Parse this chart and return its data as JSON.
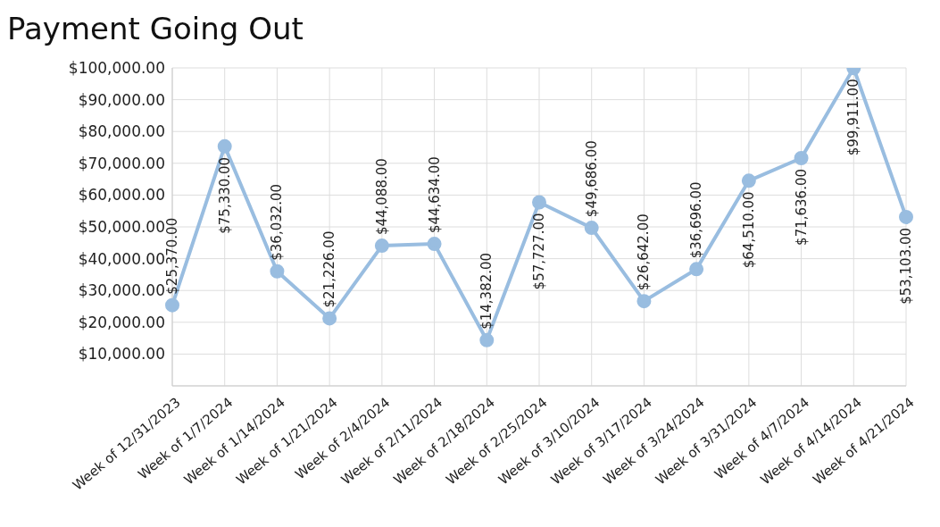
{
  "chart_data": {
    "type": "line",
    "title": "Payment Going Out",
    "categories": [
      "Week of 12/31/2023",
      "Week of 1/7/2024",
      "Week of 1/14/2024",
      "Week of 1/21/2024",
      "Week of 2/4/2024",
      "Week of 2/11/2024",
      "Week of 2/18/2024",
      "Week of 2/25/2024",
      "Week of 3/10/2024",
      "Week of 3/17/2024",
      "Week of 3/24/2024",
      "Week of 3/31/2024",
      "Week of 4/7/2024",
      "Week of 4/14/2024",
      "Week of 4/21/2024"
    ],
    "series": [
      {
        "color": "#99bde0",
        "values": [
          25370,
          75330,
          36032,
          21226,
          44088,
          44634,
          14382,
          57727,
          49686,
          26642,
          36696,
          64510,
          71636,
          99911,
          53103
        ],
        "value_labels": [
          "$25,370.00",
          "$75,330.00",
          "$36,032.00",
          "$21,226.00",
          "$44,088.00",
          "$44,634.00",
          "$14,382.00",
          "$57,727.00",
          "$49,686.00",
          "$26,642.00",
          "$36,696.00",
          "$64,510.00",
          "$71,636.00",
          "$99,911.00",
          "$53,103.00"
        ]
      }
    ],
    "ylim": [
      0,
      100000
    ],
    "yticks": [
      {
        "value": 0,
        "label": null
      },
      {
        "value": 10000,
        "label": "$10,000.00"
      },
      {
        "value": 20000,
        "label": "$20,000.00"
      },
      {
        "value": 30000,
        "label": "$30,000.00"
      },
      {
        "value": 40000,
        "label": "$40,000.00"
      },
      {
        "value": 50000,
        "label": "$50,000.00"
      },
      {
        "value": 60000,
        "label": "$60,000.00"
      },
      {
        "value": 70000,
        "label": "$70,000.00"
      },
      {
        "value": 80000,
        "label": "$80,000.00"
      },
      {
        "value": 90000,
        "label": "$90,000.00"
      },
      {
        "value": 100000,
        "label": "$100,000.00"
      }
    ],
    "grid": true,
    "marker": "circle",
    "line_style": "solid",
    "legend": false
  }
}
